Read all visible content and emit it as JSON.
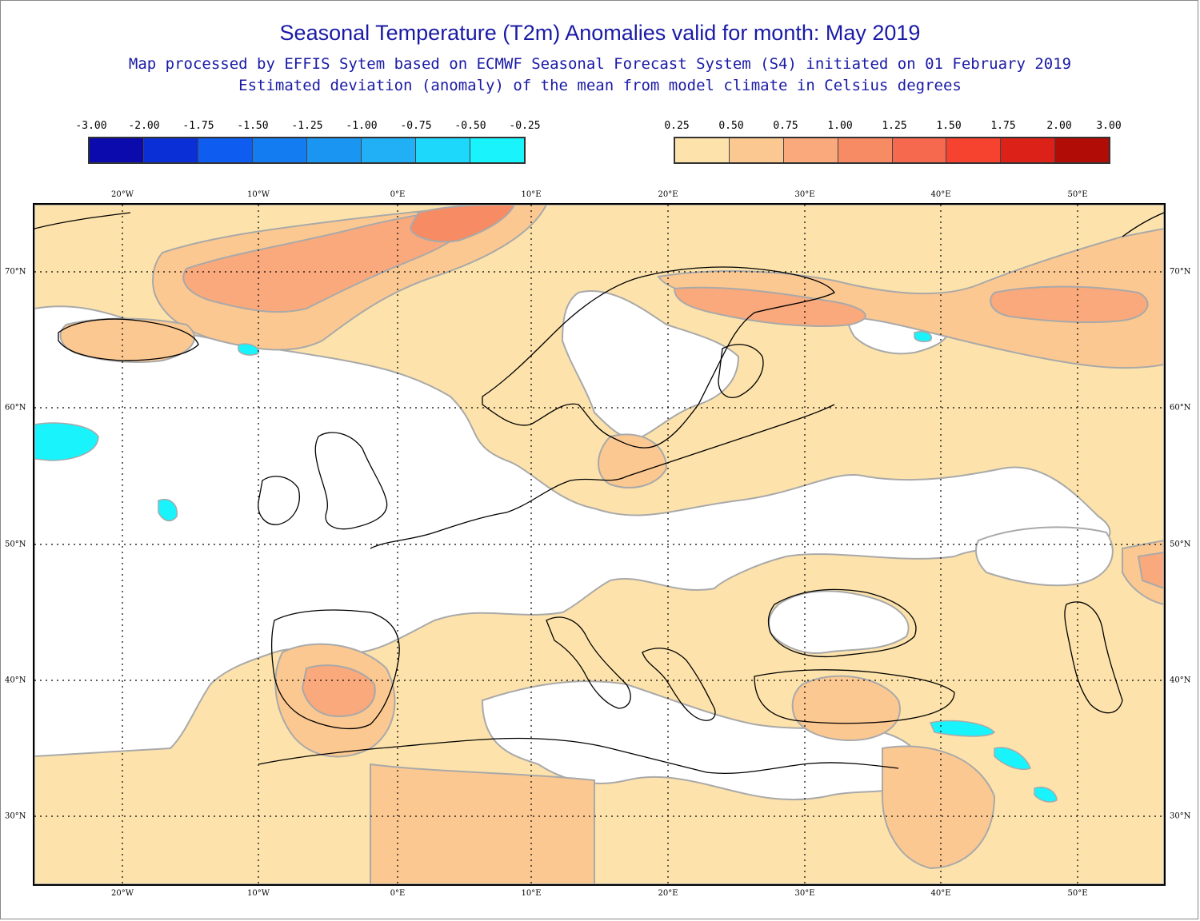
{
  "title": "Seasonal Temperature (T2m) Anomalies valid for month: May 2019",
  "subtitle_1": "Map processed by EFFIS Sytem based on ECMWF Seasonal Forecast System (S4) initiated on 01 February 2019",
  "subtitle_2": "Estimated deviation (anomaly) of the mean from model climate in Celsius degrees",
  "legend_negative": {
    "labels": [
      "-3.00",
      "-2.00",
      "-1.75",
      "-1.50",
      "-1.25",
      "-1.00",
      "-0.75",
      "-0.50",
      "-0.25"
    ],
    "colors": [
      "#0a0aad",
      "#0b2fd6",
      "#0e5cf0",
      "#137cf0",
      "#1a96f2",
      "#21b0f5",
      "#1ed8fb",
      "#19f3fb"
    ]
  },
  "legend_positive": {
    "labels": [
      "0.25",
      "0.50",
      "0.75",
      "1.00",
      "1.25",
      "1.50",
      "1.75",
      "2.00",
      "3.00"
    ],
    "colors": [
      "#fde3ab",
      "#fcc891",
      "#f9a97c",
      "#f78b64",
      "#f6694f",
      "#f5432f",
      "#dc2218",
      "#b20c06"
    ]
  },
  "lon_labels": [
    "20°W",
    "10°W",
    "0°E",
    "10°E",
    "20°E",
    "30°E",
    "40°E",
    "50°E"
  ],
  "lat_labels": [
    "70°N",
    "60°N",
    "50°N",
    "40°N",
    "30°N"
  ],
  "colors": {
    "land_outline": "#000000",
    "grid": "#000000",
    "contour": "#a9a9a9"
  }
}
